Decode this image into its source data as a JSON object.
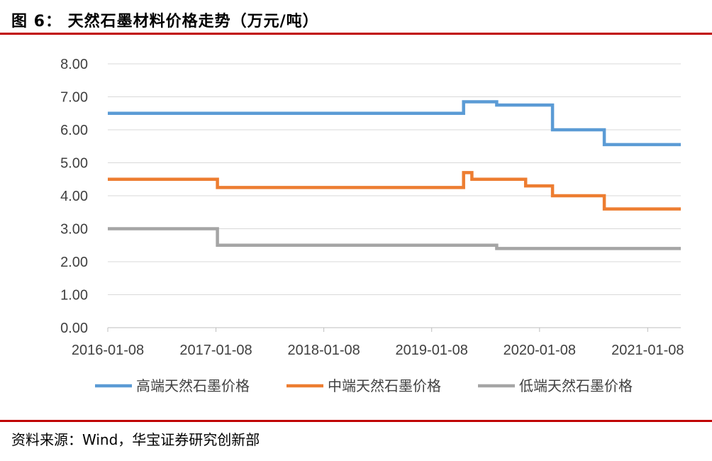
{
  "header": {
    "title": "图 6：  天然石墨材料价格走势（万元/吨）"
  },
  "footer": {
    "source": "资料来源：Wind，华宝证券研究创新部"
  },
  "chart_data": {
    "type": "line",
    "title": "",
    "xlabel": "",
    "ylabel": "",
    "ylim": [
      0,
      8
    ],
    "y_ticks": [
      "0.00",
      "1.00",
      "2.00",
      "3.00",
      "4.00",
      "5.00",
      "6.00",
      "7.00",
      "8.00"
    ],
    "x_range": [
      "2016-01-08",
      "2021-04-30"
    ],
    "x_ticks": [
      "2016-01-08",
      "2017-01-08",
      "2018-01-08",
      "2019-01-08",
      "2020-01-08",
      "2021-01-08"
    ],
    "grid": true,
    "legend_position": "bottom",
    "step": true,
    "series": [
      {
        "name": "高端天然石墨价格",
        "color": "#5b9bd5",
        "points": [
          [
            "2016-01-08",
            6.5
          ],
          [
            "2019-04-26",
            6.85
          ],
          [
            "2019-08-16",
            6.75
          ],
          [
            "2020-02-21",
            6.0
          ],
          [
            "2020-08-14",
            5.55
          ],
          [
            "2021-04-30",
            5.55
          ]
        ]
      },
      {
        "name": "中端天然石墨价格",
        "color": "#ed7d31",
        "points": [
          [
            "2016-01-08",
            4.5
          ],
          [
            "2017-01-13",
            4.25
          ],
          [
            "2019-04-26",
            4.7
          ],
          [
            "2019-05-24",
            4.5
          ],
          [
            "2019-11-22",
            4.3
          ],
          [
            "2020-02-21",
            4.0
          ],
          [
            "2020-08-14",
            3.6
          ],
          [
            "2021-04-30",
            3.6
          ]
        ]
      },
      {
        "name": "低端天然石墨价格",
        "color": "#a5a5a5",
        "points": [
          [
            "2016-01-08",
            3.0
          ],
          [
            "2017-01-13",
            2.5
          ],
          [
            "2019-08-16",
            2.4
          ],
          [
            "2021-04-30",
            2.4
          ]
        ]
      }
    ]
  }
}
